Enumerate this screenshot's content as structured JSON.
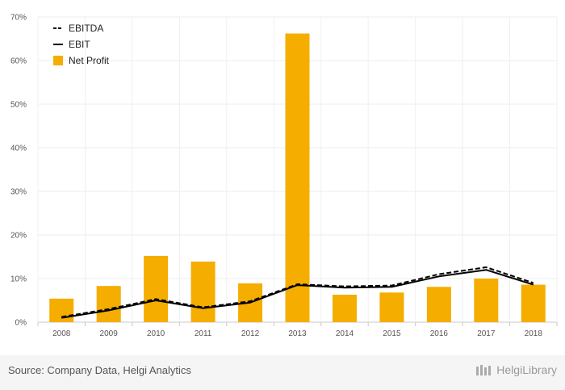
{
  "chart_data": {
    "type": "bar",
    "categories": [
      "2008",
      "2009",
      "2010",
      "2011",
      "2012",
      "2013",
      "2014",
      "2015",
      "2016",
      "2017",
      "2018"
    ],
    "series": [
      {
        "name": "EBITDA",
        "type": "line",
        "style": "dashed",
        "color": "#000000",
        "values": [
          1.2,
          3.0,
          5.3,
          3.4,
          4.8,
          8.7,
          8.2,
          8.4,
          11.0,
          12.6,
          9.0
        ]
      },
      {
        "name": "EBIT",
        "type": "line",
        "style": "solid",
        "color": "#000000",
        "values": [
          1.0,
          2.7,
          5.0,
          3.2,
          4.5,
          8.5,
          7.9,
          8.1,
          10.5,
          12.0,
          8.6
        ]
      },
      {
        "name": "Net Profit",
        "type": "bar",
        "color": "#f5ad00",
        "values": [
          5.4,
          8.3,
          15.2,
          13.9,
          8.9,
          66.2,
          6.3,
          6.8,
          8.1,
          10.0,
          8.6
        ]
      }
    ],
    "ylim": [
      0,
      70
    ],
    "yticks": [
      "0%",
      "10%",
      "20%",
      "30%",
      "40%",
      "50%",
      "60%",
      "70%"
    ],
    "grid": true,
    "legend_position": "top-left"
  },
  "footer": {
    "source": "Source: Company Data, Helgi Analytics",
    "brand": "HelgiLibrary"
  }
}
